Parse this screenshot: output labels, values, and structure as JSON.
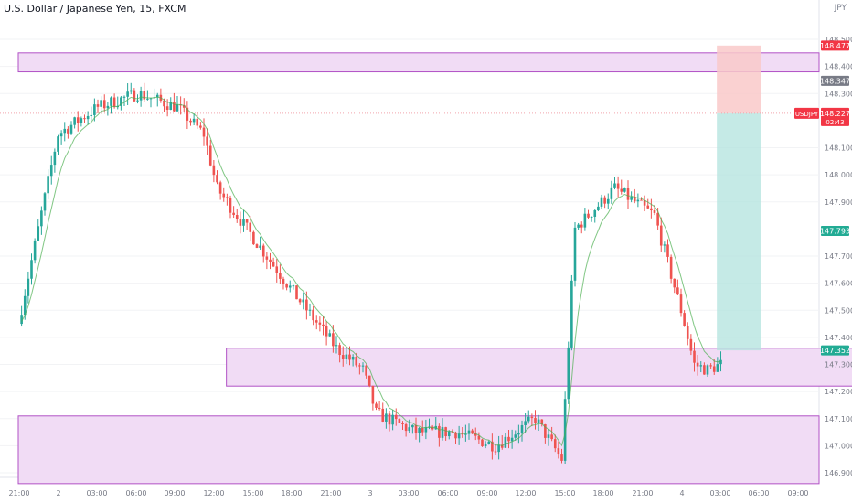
{
  "header": {
    "symbol_text": "U.S. Dollar / Japanese Yen, 15, FXCM",
    "currency": "JPY"
  },
  "colors": {
    "up": "#26a69a",
    "down": "#ef5350",
    "zone_fill": "#f1dcf5",
    "zone_border": "#b152c6",
    "profit_zone": "#b2e3dd",
    "loss_zone": "#f9c9c9",
    "label_red": "#f23645",
    "label_green": "#22ab94",
    "label_gray": "#787b86",
    "ma_line": "#4caf50"
  },
  "chart_data": {
    "type": "candlestick",
    "symbol": "USDJPY",
    "timeframe": "15",
    "source": "FXCM",
    "y_range": [
      146.86,
      148.53
    ],
    "y_ticks": [
      "148.500",
      "148.400",
      "148.300",
      "148.100",
      "148.000",
      "147.900",
      "147.700",
      "147.600",
      "147.500",
      "147.400",
      "147.300",
      "147.200",
      "147.100",
      "147.000",
      "146.900"
    ],
    "x_ticks": [
      "21:00",
      "2",
      "03:00",
      "06:00",
      "09:00",
      "12:00",
      "15:00",
      "18:00",
      "21:00",
      "3",
      "03:00",
      "06:00",
      "09:00",
      "12:00",
      "15:00",
      "18:00",
      "21:00",
      "4",
      "03:00",
      "06:00",
      "09:00"
    ],
    "price_labels": [
      {
        "text": "148.477",
        "value": 148.477,
        "style": "red"
      },
      {
        "text": "148.347",
        "value": 148.347,
        "style": "gray"
      },
      {
        "text": "USDJPY",
        "value": 148.227,
        "style": "red"
      },
      {
        "text": "148.227",
        "value": 148.227,
        "style": "red"
      },
      {
        "text": "02:43",
        "value": 148.227,
        "style": "red"
      },
      {
        "text": "147.793",
        "value": 147.793,
        "style": "green"
      },
      {
        "text": "147.352",
        "value": 147.352,
        "style": "green"
      }
    ],
    "zones": [
      {
        "from": 148.38,
        "to": 148.45,
        "start_hour": 0,
        "end_hour": "right-edge"
      },
      {
        "from": 147.22,
        "to": 147.36,
        "start_hour": 15.7,
        "end_hour": 69.5
      },
      {
        "from": 146.86,
        "to": 147.11,
        "start_hour": 0,
        "end_hour": "right-edge"
      }
    ],
    "position": {
      "entry": 148.227,
      "stop": 148.477,
      "target": 147.352,
      "start_hour": 52.7,
      "end_hour": 56.0
    },
    "current_price": 148.227,
    "path_hours": [
      0,
      3,
      6,
      9,
      12,
      14,
      15,
      18,
      21,
      24,
      26,
      27,
      30,
      33,
      36,
      39,
      41,
      42,
      45,
      48,
      50,
      51,
      52,
      53
    ],
    "path_prices": [
      147.45,
      148.15,
      148.25,
      148.3,
      148.25,
      148.15,
      147.95,
      147.75,
      147.55,
      147.36,
      147.28,
      147.12,
      147.05,
      147.05,
      147.0,
      147.1,
      146.95,
      147.8,
      147.95,
      147.85,
      147.5,
      147.3,
      147.28,
      147.3
    ]
  }
}
